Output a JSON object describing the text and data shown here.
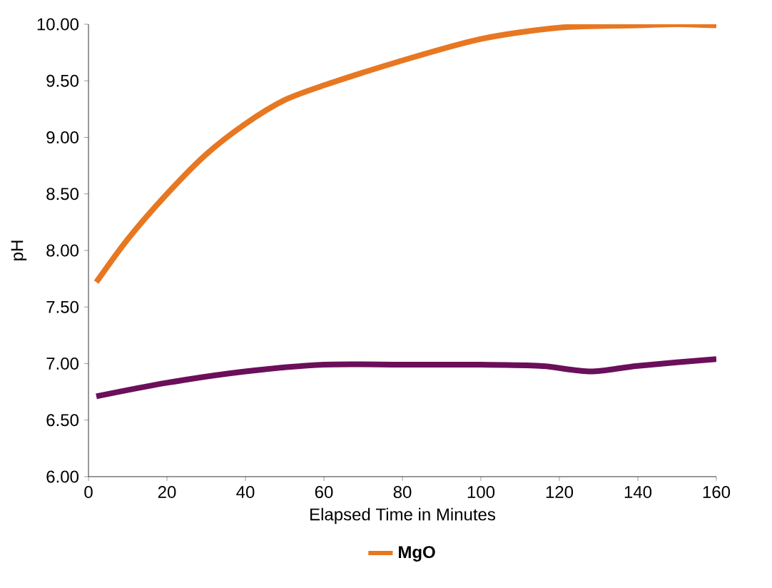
{
  "chart_data": {
    "type": "line",
    "xlabel": "Elapsed Time in Minutes",
    "ylabel": "pH",
    "xlim": [
      0,
      160
    ],
    "ylim": [
      6,
      10
    ],
    "xticks": [
      0,
      20,
      40,
      60,
      80,
      100,
      120,
      140,
      160
    ],
    "yticks": [
      {
        "value": 6,
        "label": "6.00"
      },
      {
        "value": 6.5,
        "label": "6.50"
      },
      {
        "value": 7,
        "label": "7.00"
      },
      {
        "value": 7.5,
        "label": "7.50"
      },
      {
        "value": 8,
        "label": "8.00"
      },
      {
        "value": 8.5,
        "label": "8.50"
      },
      {
        "value": 9,
        "label": "9.00"
      },
      {
        "value": 9.5,
        "label": "9.50"
      },
      {
        "value": 10,
        "label": "10.00"
      }
    ],
    "legend": "bottom",
    "grid": false,
    "marker": "none",
    "series": [
      {
        "name": "MgO",
        "color": "#e87722",
        "x": [
          2,
          10,
          20,
          30,
          40,
          50,
          60,
          80,
          100,
          120,
          140,
          150,
          160
        ],
        "values": [
          7.72,
          8.1,
          8.5,
          8.85,
          9.12,
          9.33,
          9.46,
          9.68,
          9.87,
          9.97,
          9.99,
          10.0,
          9.99
        ]
      },
      {
        "color": "#6b0f5a",
        "x": [
          2,
          20,
          40,
          60,
          80,
          100,
          115,
          128,
          140,
          160
        ],
        "values": [
          6.71,
          6.83,
          6.93,
          6.99,
          6.99,
          6.99,
          6.98,
          6.93,
          6.98,
          7.04
        ]
      }
    ]
  }
}
